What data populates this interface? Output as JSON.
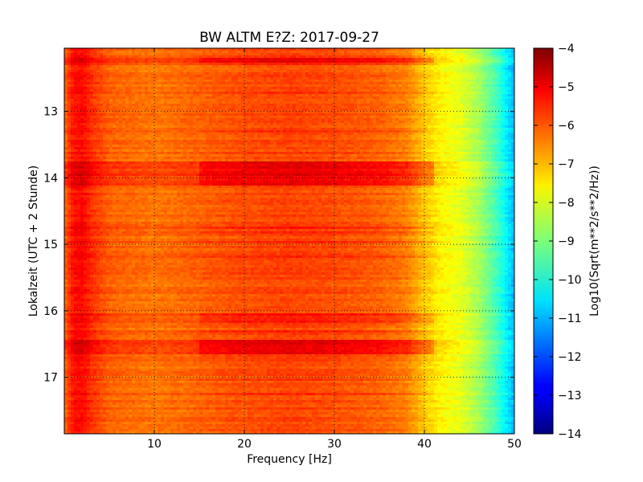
{
  "chart_data": {
    "type": "heatmap",
    "title": "BW ALTM E?Z: 2017-09-27",
    "xlabel": "Frequency [Hz]",
    "ylabel": "Lokalzeit (UTC + 2 Stunde)",
    "xlim": [
      0,
      50
    ],
    "ylim": [
      17.85,
      12.05
    ],
    "y_inverted": true,
    "grid": true,
    "x_ticks": [
      10,
      20,
      30,
      40,
      50
    ],
    "x_tick_labels": [
      "10",
      "20",
      "30",
      "40",
      "50"
    ],
    "y_ticks": [
      13,
      14,
      15,
      16,
      17
    ],
    "y_tick_labels": [
      "13",
      "14",
      "15",
      "16",
      "17"
    ],
    "colormap": "jet",
    "colorbar": {
      "label": "Log10(Sqrt(m**2/s**2/Hz))",
      "vmin": -14,
      "vmax": -4,
      "ticks": [
        -4,
        -5,
        -6,
        -7,
        -8,
        -9,
        -10,
        -11,
        -12,
        -13,
        -14
      ],
      "tick_labels": [
        "−4",
        "−5",
        "−6",
        "−7",
        "−8",
        "−9",
        "−10",
        "−11",
        "−12",
        "−13",
        "−14"
      ]
    },
    "spectrum_profile": {
      "frequency_hz": [
        0,
        1,
        2,
        3,
        5,
        10,
        15,
        20,
        25,
        30,
        35,
        38,
        40,
        42,
        44,
        46,
        48,
        49,
        50
      ],
      "level": [
        -6.3,
        -5.4,
        -5.3,
        -5.7,
        -6.2,
        -6.4,
        -6.2,
        -6.0,
        -5.9,
        -6.0,
        -6.2,
        -6.5,
        -7.2,
        -7.7,
        -8.0,
        -8.6,
        -9.6,
        -10.3,
        -11.0
      ]
    },
    "high_energy_bands": [
      {
        "time_start": 13.75,
        "time_end": 14.1,
        "boost": 0.9
      },
      {
        "time_start": 16.05,
        "time_end": 16.2,
        "boost": 0.5
      },
      {
        "time_start": 16.45,
        "time_end": 16.65,
        "boost": 0.9
      },
      {
        "time_start": 12.2,
        "time_end": 12.25,
        "boost": 0.8
      }
    ]
  }
}
